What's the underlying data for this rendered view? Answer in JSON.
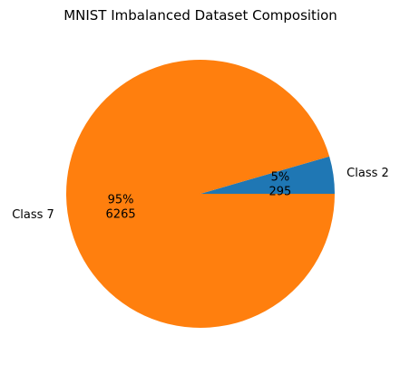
{
  "chart_data": {
    "type": "pie",
    "title": "MNIST Imbalanced Dataset Composition",
    "series": [
      {
        "label": "Class 2",
        "value": 295,
        "percent_label": "5%",
        "count_label": "295",
        "color": "#1f77b4"
      },
      {
        "label": "Class 7",
        "value": 6265,
        "percent_label": "95%",
        "count_label": "6265",
        "color": "#ff7f0e"
      }
    ],
    "start_angle_deg": 0,
    "direction": "counterclockwise"
  }
}
